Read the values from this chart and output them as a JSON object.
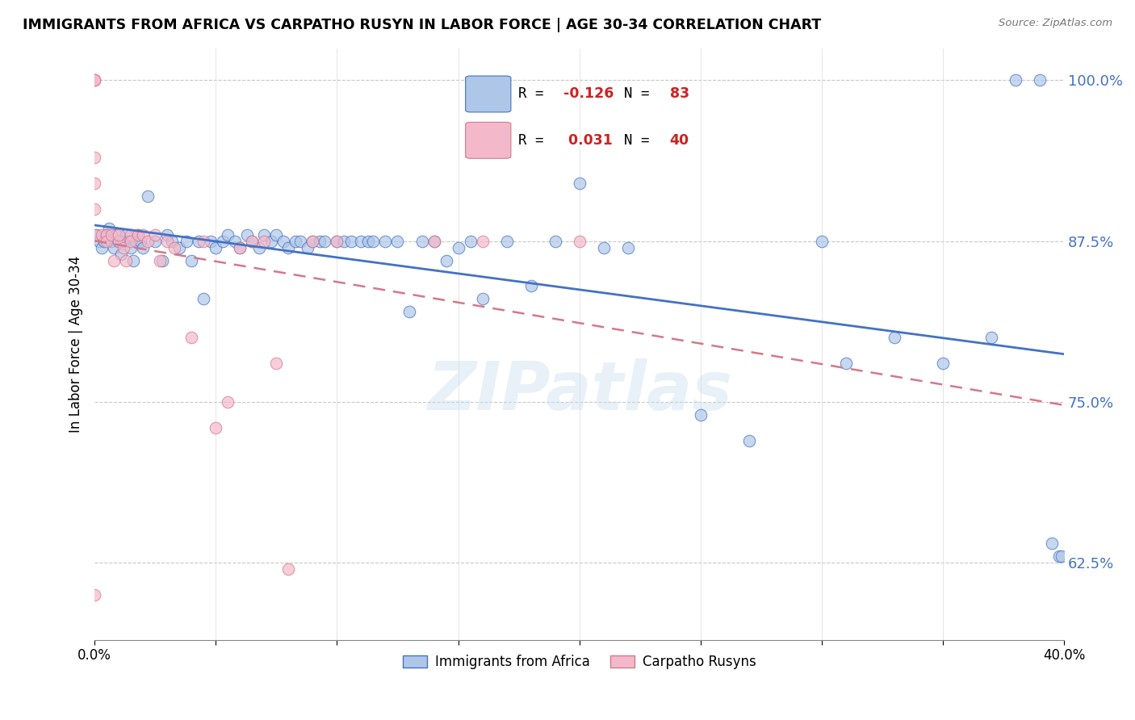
{
  "title": "IMMIGRANTS FROM AFRICA VS CARPATHO RUSYN IN LABOR FORCE | AGE 30-34 CORRELATION CHART",
  "source": "Source: ZipAtlas.com",
  "ylabel": "In Labor Force | Age 30-34",
  "ytick_labels": [
    "100.0%",
    "87.5%",
    "75.0%",
    "62.5%"
  ],
  "ytick_values": [
    1.0,
    0.875,
    0.75,
    0.625
  ],
  "xlim": [
    0.0,
    0.4
  ],
  "ylim": [
    0.565,
    1.025
  ],
  "blue_color": "#aec6e8",
  "blue_line_color": "#4472c4",
  "pink_color": "#f4b8cb",
  "pink_line_color": "#d4788a",
  "watermark": "ZIPatlas",
  "blue_scatter_x": [
    0.001,
    0.002,
    0.003,
    0.004,
    0.005,
    0.006,
    0.007,
    0.008,
    0.009,
    0.01,
    0.011,
    0.012,
    0.013,
    0.014,
    0.015,
    0.016,
    0.017,
    0.018,
    0.019,
    0.02,
    0.022,
    0.025,
    0.028,
    0.03,
    0.032,
    0.035,
    0.038,
    0.04,
    0.043,
    0.045,
    0.048,
    0.05,
    0.053,
    0.055,
    0.058,
    0.06,
    0.063,
    0.065,
    0.068,
    0.07,
    0.073,
    0.075,
    0.078,
    0.08,
    0.083,
    0.085,
    0.088,
    0.09,
    0.093,
    0.095,
    0.1,
    0.103,
    0.106,
    0.11,
    0.113,
    0.115,
    0.12,
    0.125,
    0.13,
    0.135,
    0.14,
    0.145,
    0.15,
    0.155,
    0.16,
    0.17,
    0.18,
    0.19,
    0.2,
    0.21,
    0.22,
    0.25,
    0.27,
    0.3,
    0.31,
    0.33,
    0.35,
    0.37,
    0.38,
    0.39,
    0.395,
    0.398,
    0.399
  ],
  "blue_scatter_y": [
    0.88,
    0.875,
    0.87,
    0.875,
    0.88,
    0.885,
    0.875,
    0.87,
    0.88,
    0.875,
    0.865,
    0.875,
    0.88,
    0.875,
    0.87,
    0.86,
    0.875,
    0.88,
    0.875,
    0.87,
    0.91,
    0.875,
    0.86,
    0.88,
    0.875,
    0.87,
    0.875,
    0.86,
    0.875,
    0.83,
    0.875,
    0.87,
    0.875,
    0.88,
    0.875,
    0.87,
    0.88,
    0.875,
    0.87,
    0.88,
    0.875,
    0.88,
    0.875,
    0.87,
    0.875,
    0.875,
    0.87,
    0.875,
    0.875,
    0.875,
    0.875,
    0.875,
    0.875,
    0.875,
    0.875,
    0.875,
    0.875,
    0.875,
    0.82,
    0.875,
    0.875,
    0.86,
    0.87,
    0.875,
    0.83,
    0.875,
    0.84,
    0.875,
    0.92,
    0.87,
    0.87,
    0.74,
    0.72,
    0.875,
    0.78,
    0.8,
    0.78,
    0.8,
    1.0,
    1.0,
    0.64,
    0.63,
    0.63
  ],
  "pink_scatter_x": [
    0.0,
    0.0,
    0.0,
    0.0,
    0.0,
    0.0,
    0.0,
    0.0,
    0.003,
    0.005,
    0.005,
    0.007,
    0.008,
    0.01,
    0.01,
    0.012,
    0.013,
    0.015,
    0.015,
    0.018,
    0.02,
    0.022,
    0.025,
    0.027,
    0.03,
    0.033,
    0.04,
    0.045,
    0.05,
    0.055,
    0.06,
    0.065,
    0.07,
    0.075,
    0.08,
    0.09,
    0.1,
    0.14,
    0.16,
    0.2
  ],
  "pink_scatter_y": [
    1.0,
    1.0,
    1.0,
    0.94,
    0.92,
    0.9,
    0.88,
    0.6,
    0.88,
    0.88,
    0.875,
    0.88,
    0.86,
    0.875,
    0.88,
    0.87,
    0.86,
    0.88,
    0.875,
    0.88,
    0.88,
    0.875,
    0.88,
    0.86,
    0.875,
    0.87,
    0.8,
    0.875,
    0.73,
    0.75,
    0.87,
    0.875,
    0.875,
    0.78,
    0.62,
    0.875,
    0.875,
    0.875,
    0.875,
    0.875
  ]
}
